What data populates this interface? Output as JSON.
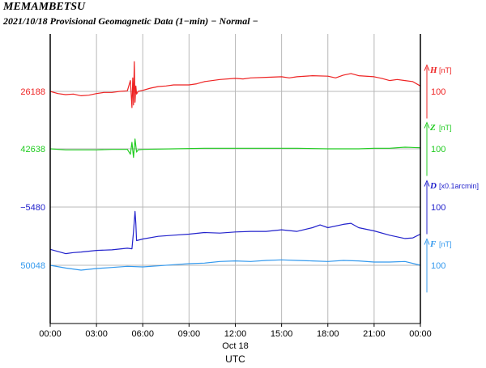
{
  "chart_data": {
    "type": "line",
    "title": "MEMAMBETSU",
    "subtitle": "2021/10/18  Provisional Geomagnetic Data (1−min)  − Normal −",
    "xlabel": "UTC",
    "date_label": "Oct 18",
    "x_ticks": [
      "00:00",
      "03:00",
      "06:00",
      "09:00",
      "12:00",
      "15:00",
      "18:00",
      "21:00",
      "00:00"
    ],
    "x_range_hours": [
      0,
      24
    ],
    "grid": true,
    "series": [
      {
        "key": "H",
        "name": "H",
        "unit": "[nT]",
        "baseline": "26188",
        "scale": "100",
        "color": "#ee2222",
        "points": [
          [
            0,
            0
          ],
          [
            0.5,
            -4
          ],
          [
            1,
            -6
          ],
          [
            1.5,
            -5
          ],
          [
            2,
            -8
          ],
          [
            2.5,
            -7
          ],
          [
            3,
            -4
          ],
          [
            3.5,
            -2
          ],
          [
            4,
            -2
          ],
          [
            4.5,
            0
          ],
          [
            5,
            1
          ],
          [
            5.2,
            20
          ],
          [
            5.3,
            -30
          ],
          [
            5.35,
            25
          ],
          [
            5.4,
            -25
          ],
          [
            5.45,
            55
          ],
          [
            5.5,
            -20
          ],
          [
            5.55,
            10
          ],
          [
            5.6,
            -5
          ],
          [
            5.7,
            0
          ],
          [
            6,
            2
          ],
          [
            6.5,
            6
          ],
          [
            7,
            9
          ],
          [
            7.5,
            10
          ],
          [
            8,
            12
          ],
          [
            9,
            12
          ],
          [
            9.5,
            14
          ],
          [
            10,
            18
          ],
          [
            11,
            22
          ],
          [
            12,
            24
          ],
          [
            12.5,
            23
          ],
          [
            13,
            25
          ],
          [
            14,
            26
          ],
          [
            15,
            27
          ],
          [
            15.5,
            25
          ],
          [
            16,
            27
          ],
          [
            17,
            29
          ],
          [
            18,
            28
          ],
          [
            18.5,
            25
          ],
          [
            19,
            30
          ],
          [
            19.5,
            33
          ],
          [
            20,
            29
          ],
          [
            21,
            27
          ],
          [
            21.5,
            24
          ],
          [
            22,
            20
          ],
          [
            22.5,
            22
          ],
          [
            23,
            20
          ],
          [
            23.5,
            18
          ],
          [
            24,
            10
          ]
        ]
      },
      {
        "key": "Z",
        "name": "Z",
        "unit": "[nT]",
        "baseline": "42638",
        "scale": "100",
        "color": "#22cc22",
        "points": [
          [
            0,
            0
          ],
          [
            1,
            -2
          ],
          [
            2,
            -2
          ],
          [
            3,
            -2
          ],
          [
            4,
            -1
          ],
          [
            5,
            -1
          ],
          [
            5.2,
            -10
          ],
          [
            5.3,
            12
          ],
          [
            5.4,
            -16
          ],
          [
            5.5,
            18
          ],
          [
            5.6,
            -6
          ],
          [
            5.7,
            -2
          ],
          [
            6,
            -1
          ],
          [
            8,
            0
          ],
          [
            10,
            1
          ],
          [
            12,
            1
          ],
          [
            14,
            1
          ],
          [
            16,
            1
          ],
          [
            18,
            0
          ],
          [
            19,
            0
          ],
          [
            20,
            0
          ],
          [
            21,
            1
          ],
          [
            22,
            1
          ],
          [
            23,
            3
          ],
          [
            24,
            2
          ]
        ]
      },
      {
        "key": "D",
        "name": "D",
        "unit": "[x0.1arcmin]",
        "baseline": "−5480",
        "scale": "100",
        "color": "#2222cc",
        "points": [
          [
            0,
            -78
          ],
          [
            0.5,
            -82
          ],
          [
            1,
            -86
          ],
          [
            1.5,
            -84
          ],
          [
            2,
            -83
          ],
          [
            3,
            -80
          ],
          [
            4,
            -79
          ],
          [
            5,
            -76
          ],
          [
            5.3,
            -77
          ],
          [
            5.4,
            -46
          ],
          [
            5.5,
            -8
          ],
          [
            5.55,
            -30
          ],
          [
            5.6,
            -62
          ],
          [
            6,
            -59
          ],
          [
            7,
            -54
          ],
          [
            8,
            -52
          ],
          [
            9,
            -50
          ],
          [
            10,
            -47
          ],
          [
            11,
            -48
          ],
          [
            12,
            -46
          ],
          [
            13,
            -45
          ],
          [
            14,
            -45
          ],
          [
            15,
            -42
          ],
          [
            16,
            -45
          ],
          [
            17,
            -38
          ],
          [
            17.5,
            -33
          ],
          [
            18,
            -38
          ],
          [
            19,
            -32
          ],
          [
            19.5,
            -30
          ],
          [
            20,
            -38
          ],
          [
            21,
            -44
          ],
          [
            22,
            -52
          ],
          [
            23,
            -58
          ],
          [
            23.5,
            -57
          ],
          [
            24,
            -50
          ]
        ]
      },
      {
        "key": "F",
        "name": "F",
        "unit": "[nT]",
        "baseline": "50048",
        "scale": "100",
        "color": "#3399ee",
        "points": [
          [
            0,
            0
          ],
          [
            1,
            -5
          ],
          [
            2,
            -9
          ],
          [
            3,
            -6
          ],
          [
            4,
            -4
          ],
          [
            5,
            -2
          ],
          [
            6,
            -3
          ],
          [
            7,
            -1
          ],
          [
            8,
            1
          ],
          [
            9,
            3
          ],
          [
            10,
            4
          ],
          [
            11,
            7
          ],
          [
            12,
            8
          ],
          [
            13,
            7
          ],
          [
            14,
            9
          ],
          [
            15,
            10
          ],
          [
            16,
            9
          ],
          [
            17,
            8
          ],
          [
            18,
            7
          ],
          [
            19,
            9
          ],
          [
            20,
            8
          ],
          [
            21,
            6
          ],
          [
            22,
            6
          ],
          [
            23,
            7
          ],
          [
            24,
            0
          ]
        ]
      }
    ]
  }
}
